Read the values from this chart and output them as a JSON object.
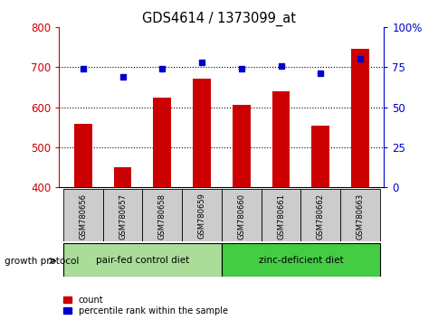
{
  "title": "GDS4614 / 1373099_at",
  "samples": [
    "GSM780656",
    "GSM780657",
    "GSM780658",
    "GSM780659",
    "GSM780660",
    "GSM780661",
    "GSM780662",
    "GSM780663"
  ],
  "counts": [
    558,
    450,
    625,
    672,
    605,
    640,
    553,
    745
  ],
  "percentiles": [
    74,
    69,
    74,
    78,
    74,
    76,
    71,
    80
  ],
  "y_min": 400,
  "y_max": 800,
  "y_ticks": [
    400,
    500,
    600,
    700,
    800
  ],
  "y2_ticks": [
    0,
    25,
    50,
    75,
    100
  ],
  "y2_labels": [
    "0",
    "25",
    "50",
    "75",
    "100%"
  ],
  "bar_color": "#cc0000",
  "dot_color": "#0000cc",
  "group1_label": "pair-fed control diet",
  "group2_label": "zinc-deficient diet",
  "group1_color": "#aadd99",
  "group2_color": "#44cc44",
  "group_label_left": "growth protocol",
  "legend_count": "count",
  "legend_percentile": "percentile rank within the sample",
  "tick_color_left": "#cc0000",
  "tick_color_right": "#0000cc",
  "n_group1": 4,
  "n_group2": 4,
  "sample_box_color": "#cccccc",
  "bar_width": 0.45
}
